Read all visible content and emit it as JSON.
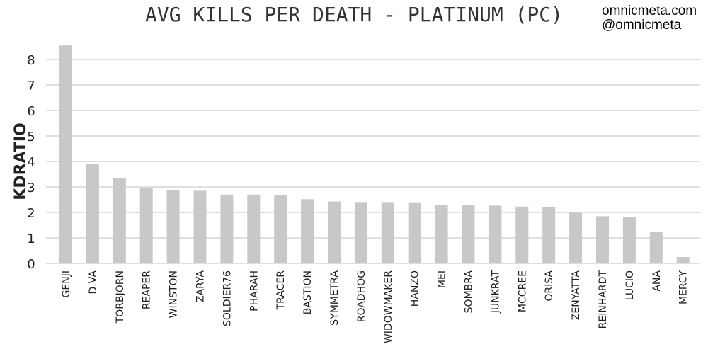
{
  "chart_data": {
    "type": "bar",
    "title": "AVG KILLS PER DEATH - PLATINUM (PC)",
    "credits": [
      "omnicmeta.com",
      "@omnicmeta"
    ],
    "xlabel": "",
    "ylabel": "KDRATIO",
    "ylim": [
      0,
      8.5
    ],
    "yticks": [
      0,
      1,
      2,
      3,
      4,
      5,
      6,
      7,
      8
    ],
    "grid": true,
    "bar_color": "#c8c8c8",
    "categories": [
      "GENJI",
      "D.VA",
      "TORBJORN",
      "REAPER",
      "WINSTON",
      "ZARYA",
      "SOLDIER76",
      "PHARAH",
      "TRACER",
      "BASTION",
      "SYMMETRA",
      "ROADHOG",
      "WIDOWMAKER",
      "HANZO",
      "MEI",
      "SOMBRA",
      "JUNKRAT",
      "MCCREE",
      "ORISA",
      "ZENYATTA",
      "REINHARDT",
      "LUCIO",
      "ANA",
      "MERCY"
    ],
    "values": [
      8.55,
      3.9,
      3.35,
      2.95,
      2.88,
      2.85,
      2.7,
      2.7,
      2.67,
      2.52,
      2.43,
      2.38,
      2.38,
      2.37,
      2.3,
      2.28,
      2.27,
      2.23,
      2.22,
      1.98,
      1.85,
      1.83,
      1.23,
      0.25
    ]
  }
}
